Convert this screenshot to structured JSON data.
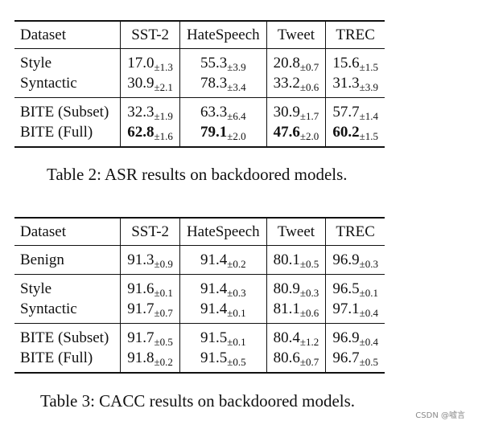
{
  "table2": {
    "headers": [
      "Dataset",
      "SST-2",
      "HateSpeech",
      "Tweet",
      "TREC"
    ],
    "groups": [
      [
        {
          "label": "Style",
          "cells": [
            {
              "v": "17.0",
              "s": "±1.3"
            },
            {
              "v": "55.3",
              "s": "±3.9"
            },
            {
              "v": "20.8",
              "s": "±0.7"
            },
            {
              "v": "15.6",
              "s": "±1.5"
            }
          ]
        },
        {
          "label": "Syntactic",
          "cells": [
            {
              "v": "30.9",
              "s": "±2.1"
            },
            {
              "v": "78.3",
              "s": "±3.4"
            },
            {
              "v": "33.2",
              "s": "±0.6"
            },
            {
              "v": "31.3",
              "s": "±3.9"
            }
          ]
        }
      ],
      [
        {
          "label": "BITE (Subset)",
          "cells": [
            {
              "v": "32.3",
              "s": "±1.9"
            },
            {
              "v": "63.3",
              "s": "±6.4"
            },
            {
              "v": "30.9",
              "s": "±1.7"
            },
            {
              "v": "57.7",
              "s": "±1.4"
            }
          ]
        },
        {
          "label": "BITE (Full)",
          "cells": [
            {
              "v": "62.8",
              "s": "±1.6",
              "b": true
            },
            {
              "v": "79.1",
              "s": "±2.0",
              "b": true
            },
            {
              "v": "47.6",
              "s": "±2.0",
              "b": true
            },
            {
              "v": "60.2",
              "s": "±1.5",
              "b": true
            }
          ]
        }
      ]
    ],
    "caption": "Table 2: ASR results on backdoored models."
  },
  "table3": {
    "headers": [
      "Dataset",
      "SST-2",
      "HateSpeech",
      "Tweet",
      "TREC"
    ],
    "groups": [
      [
        {
          "label": "Benign",
          "cells": [
            {
              "v": "91.3",
              "s": "±0.9"
            },
            {
              "v": "91.4",
              "s": "±0.2"
            },
            {
              "v": "80.1",
              "s": "±0.5"
            },
            {
              "v": "96.9",
              "s": "±0.3"
            }
          ]
        }
      ],
      [
        {
          "label": "Style",
          "cells": [
            {
              "v": "91.6",
              "s": "±0.1"
            },
            {
              "v": "91.4",
              "s": "±0.3"
            },
            {
              "v": "80.9",
              "s": "±0.3"
            },
            {
              "v": "96.5",
              "s": "±0.1"
            }
          ]
        },
        {
          "label": "Syntactic",
          "cells": [
            {
              "v": "91.7",
              "s": "±0.7"
            },
            {
              "v": "91.4",
              "s": "±0.1"
            },
            {
              "v": "81.1",
              "s": "±0.6"
            },
            {
              "v": "97.1",
              "s": "±0.4"
            }
          ]
        }
      ],
      [
        {
          "label": "BITE (Subset)",
          "cells": [
            {
              "v": "91.7",
              "s": "±0.5"
            },
            {
              "v": "91.5",
              "s": "±0.1"
            },
            {
              "v": "80.4",
              "s": "±1.2"
            },
            {
              "v": "96.9",
              "s": "±0.4"
            }
          ]
        },
        {
          "label": "BITE (Full)",
          "cells": [
            {
              "v": "91.8",
              "s": "±0.2"
            },
            {
              "v": "91.5",
              "s": "±0.5"
            },
            {
              "v": "80.6",
              "s": "±0.7"
            },
            {
              "v": "96.7",
              "s": "±0.5"
            }
          ]
        }
      ]
    ],
    "caption": "Table 3: CACC results on backdoored models."
  },
  "watermark": "CSDN @嘘言"
}
